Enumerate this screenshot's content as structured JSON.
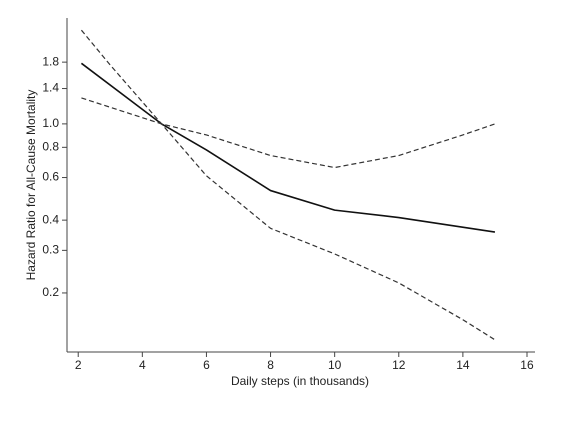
{
  "chart_data": {
    "type": "line",
    "log_y": true,
    "grid": false,
    "xlabel": "Daily steps (in thousands)",
    "ylabel": "Hazard Ratio for All-Cause Mortality",
    "xlim": [
      1.65,
      16.25
    ],
    "xticks": [
      2,
      4,
      6,
      8,
      10,
      12,
      14,
      16
    ],
    "ylim": [
      0.114,
      2.74
    ],
    "yticks": [
      0.2,
      0.3,
      0.4,
      0.6,
      0.8,
      {
        "value": 1,
        "label": "1.0"
      },
      1.4,
      1.8
    ],
    "series": [
      {
        "color": "#111111",
        "dashed": false,
        "x": [
          2.1,
          4.6,
          6,
          8,
          10,
          12,
          15
        ],
        "values": [
          1.78,
          1.0,
          0.78,
          0.53,
          0.44,
          0.41,
          0.357
        ]
      },
      {
        "color": "#333333",
        "dashed": true,
        "x": [
          2.1,
          4.6,
          6,
          8,
          10,
          12,
          14,
          15
        ],
        "values": [
          1.28,
          1.0,
          0.9,
          0.74,
          0.66,
          0.74,
          0.9,
          1.0
        ]
      },
      {
        "color": "#333333",
        "dashed": true,
        "x": [
          2.1,
          3,
          4.6,
          6,
          8,
          10,
          12,
          14,
          15
        ],
        "values": [
          2.44,
          1.75,
          1.0,
          0.61,
          0.37,
          0.29,
          0.22,
          0.155,
          0.128
        ]
      }
    ]
  }
}
